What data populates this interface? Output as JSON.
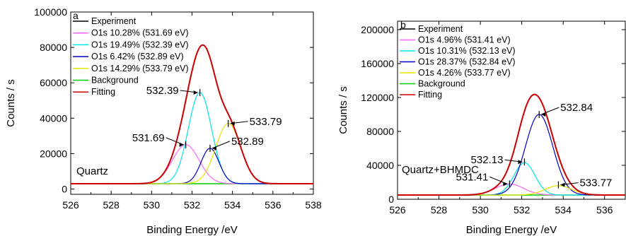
{
  "chart_data": [
    {
      "type": "line",
      "panel_label": "a",
      "sample_label": "Quartz",
      "xlabel": "Binding Energy /eV",
      "ylabel": "Counts / s",
      "xlim": [
        526,
        538
      ],
      "ylim": [
        -3000,
        100000
      ],
      "x_ticks": [
        526,
        528,
        530,
        532,
        534,
        536,
        538
      ],
      "y_ticks": [
        0,
        20000,
        40000,
        60000,
        80000,
        100000
      ],
      "x_tick_labels": [
        "526",
        "528",
        "530",
        "532",
        "534",
        "536",
        "538"
      ],
      "y_tick_labels": [
        "0",
        "20000",
        "40000",
        "60000",
        "80000",
        "100000"
      ],
      "baseline": 3000,
      "legend": {
        "placement": "top-left",
        "entries": [
          {
            "label": "Experiment",
            "color": "#000000"
          },
          {
            "label": "O1s 10.28% (531.69 eV)",
            "color": "#ff66ff"
          },
          {
            "label": "O1s 19.49% (532.39 eV)",
            "color": "#00e5e5"
          },
          {
            "label": "O1s 6.42% (532.89 eV)",
            "color": "#0000cc"
          },
          {
            "label": "O1s 14.29% (533.79 eV)",
            "color": "#e6e600"
          },
          {
            "label": "Background",
            "color": "#00cc00"
          },
          {
            "label": "Fitting",
            "color": "#cc0000"
          }
        ]
      },
      "peaks": [
        {
          "center": 531.69,
          "height": 22000,
          "fwhm": 1.55,
          "color": "#ff66ff"
        },
        {
          "center": 532.39,
          "height": 51500,
          "fwhm": 1.35,
          "color": "#00e5e5"
        },
        {
          "center": 532.89,
          "height": 20000,
          "fwhm": 1.05,
          "color": "#0000cc"
        },
        {
          "center": 533.79,
          "height": 34000,
          "fwhm": 1.45,
          "color": "#e6e600"
        }
      ],
      "annotations": [
        {
          "text": "531.69",
          "x": 531.69,
          "y": 25000,
          "side": "left"
        },
        {
          "text": "532.39",
          "x": 532.39,
          "y": 54500,
          "side": "left"
        },
        {
          "text": "532.89",
          "x": 532.89,
          "y": 23000,
          "side": "right"
        },
        {
          "text": "533.79",
          "x": 533.79,
          "y": 37000,
          "side": "right"
        }
      ]
    },
    {
      "type": "line",
      "panel_label": "b",
      "sample_label": "Quartz+BHMDC",
      "xlabel": "Binding Energy /eV",
      "ylabel": "Counts / s",
      "xlim": [
        526,
        537
      ],
      "ylim": [
        0,
        210000
      ],
      "x_ticks": [
        526,
        528,
        530,
        532,
        534,
        536
      ],
      "y_ticks": [
        0,
        40000,
        80000,
        120000,
        160000,
        200000
      ],
      "x_tick_labels": [
        "526",
        "528",
        "530",
        "532",
        "534",
        "536"
      ],
      "y_tick_labels": [
        "0",
        "40000",
        "80000",
        "120000",
        "160000",
        "200000"
      ],
      "baseline": 5000,
      "legend": {
        "placement": "top-left",
        "entries": [
          {
            "label": "Experiment",
            "color": "#000000"
          },
          {
            "label": "O1s 4.96% (531.41 eV)",
            "color": "#ff66ff"
          },
          {
            "label": "O1s 10.31% (532.13 eV)",
            "color": "#00e5e5"
          },
          {
            "label": "O1s 28.37% (532.84 eV)",
            "color": "#0000cc"
          },
          {
            "label": "O1s 4.26% (533.77 eV)",
            "color": "#e6e600"
          },
          {
            "label": "Background",
            "color": "#00cc00"
          },
          {
            "label": "Fitting",
            "color": "#cc0000"
          }
        ]
      },
      "peaks": [
        {
          "center": 531.41,
          "height": 13000,
          "fwhm": 1.6,
          "color": "#ff66ff"
        },
        {
          "center": 532.13,
          "height": 38000,
          "fwhm": 1.2,
          "color": "#00e5e5"
        },
        {
          "center": 532.84,
          "height": 95000,
          "fwhm": 1.55,
          "color": "#0000cc"
        },
        {
          "center": 533.77,
          "height": 11000,
          "fwhm": 1.5,
          "color": "#e6e600"
        }
      ],
      "annotations": [
        {
          "text": "531.41",
          "x": 531.41,
          "y": 18000,
          "side": "left"
        },
        {
          "text": "532.13",
          "x": 532.13,
          "y": 44000,
          "side": "left"
        },
        {
          "text": "532.84",
          "x": 532.84,
          "y": 100000,
          "side": "right"
        },
        {
          "text": "533.77",
          "x": 533.77,
          "y": 17000,
          "side": "right"
        }
      ]
    }
  ]
}
